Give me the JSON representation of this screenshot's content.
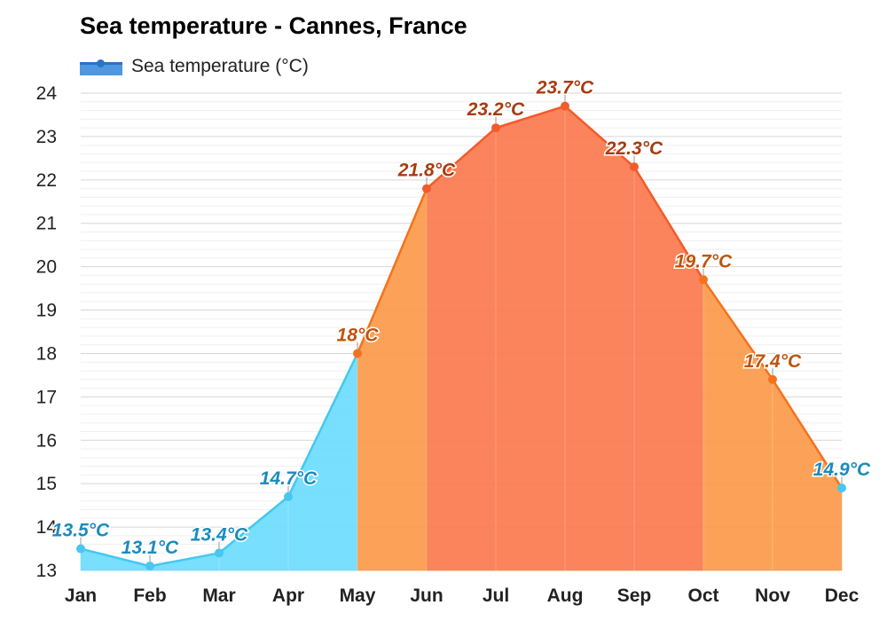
{
  "chart_data": {
    "type": "area",
    "title": "Sea temperature - Cannes, France",
    "categories": [
      "Jan",
      "Feb",
      "Mar",
      "Apr",
      "May",
      "Jun",
      "Jul",
      "Aug",
      "Sep",
      "Oct",
      "Nov",
      "Dec"
    ],
    "series": [
      {
        "name": "Sea temperature (°C)",
        "values": [
          13.5,
          13.1,
          13.4,
          14.7,
          18,
          21.8,
          23.2,
          23.7,
          22.3,
          19.7,
          17.4,
          14.9
        ],
        "labels": [
          "13.5°C",
          "13.1°C",
          "13.4°C",
          "14.7°C",
          "18°C",
          "21.8°C",
          "23.2°C",
          "23.7°C",
          "22.3°C",
          "19.7°C",
          "17.4°C",
          "14.9°C"
        ]
      }
    ],
    "y_ticks": [
      "13",
      "14",
      "15",
      "16",
      "17",
      "18",
      "19",
      "20",
      "21",
      "22",
      "23",
      "24"
    ],
    "ylim": [
      13,
      24
    ],
    "grid": true,
    "legend_position": "top-left",
    "colors": {
      "cool_fill": "#6ddcff",
      "cool_line": "#46c8ef",
      "cool_label": "#1a8bbf",
      "mild_fill": "#fb9a4a",
      "mild_line": "#f5721d",
      "mild_label": "#c0540c",
      "warm_fill": "#fb7a4e",
      "warm_line": "#f25b2a",
      "warm_label": "#a83b10",
      "legend": "#4d98e0"
    }
  }
}
